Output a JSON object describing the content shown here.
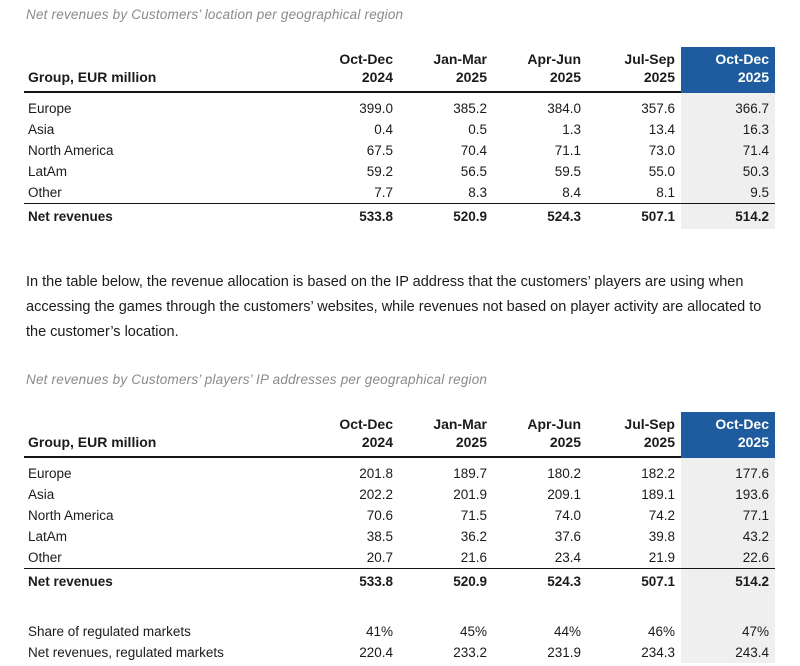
{
  "colors": {
    "accent_blue": "#1e5c9f",
    "highlight_gray": "#efefef",
    "title_gray": "#8a8a8a"
  },
  "section_location": {
    "title": "Net revenues by Customers’ location per geographical region",
    "table": {
      "corner_label": "Group, EUR million",
      "column_headers": [
        "Oct-Dec\n2024",
        "Jan-Mar\n2025",
        "Apr-Jun\n2025",
        "Jul-Sep\n2025",
        "Oct-Dec\n2025"
      ],
      "rows": [
        {
          "label": "Europe",
          "values": [
            "399.0",
            "385.2",
            "384.0",
            "357.6",
            "366.7"
          ]
        },
        {
          "label": "Asia",
          "values": [
            "0.4",
            "0.5",
            "1.3",
            "13.4",
            "16.3"
          ]
        },
        {
          "label": "North America",
          "values": [
            "67.5",
            "70.4",
            "71.1",
            "73.0",
            "71.4"
          ]
        },
        {
          "label": "LatAm",
          "values": [
            "59.2",
            "56.5",
            "59.5",
            "55.0",
            "50.3"
          ]
        },
        {
          "label": "Other",
          "values": [
            "7.7",
            "8.3",
            "8.4",
            "8.1",
            "9.5"
          ]
        }
      ],
      "total": {
        "label": "Net revenues",
        "values": [
          "533.8",
          "520.9",
          "524.3",
          "507.1",
          "514.2"
        ]
      }
    }
  },
  "body_paragraph": "In the table below, the revenue allocation is based on the IP address that the customers’ players are using when accessing the games through the customers’ websites, while revenues not based on player activity are allocated to the customer’s location.",
  "section_ip": {
    "title": "Net revenues by Customers’ players’ IP addresses per geographical region",
    "table": {
      "corner_label": "Group, EUR million",
      "column_headers": [
        "Oct-Dec\n2024",
        "Jan-Mar\n2025",
        "Apr-Jun\n2025",
        "Jul-Sep\n2025",
        "Oct-Dec\n2025"
      ],
      "rows": [
        {
          "label": "Europe",
          "values": [
            "201.8",
            "189.7",
            "180.2",
            "182.2",
            "177.6"
          ]
        },
        {
          "label": "Asia",
          "values": [
            "202.2",
            "201.9",
            "209.1",
            "189.1",
            "193.6"
          ]
        },
        {
          "label": "North America",
          "values": [
            "70.6",
            "71.5",
            "74.0",
            "74.2",
            "77.1"
          ]
        },
        {
          "label": "LatAm",
          "values": [
            "38.5",
            "36.2",
            "37.6",
            "39.8",
            "43.2"
          ]
        },
        {
          "label": "Other",
          "values": [
            "20.7",
            "21.6",
            "23.4",
            "21.9",
            "22.6"
          ]
        }
      ],
      "total": {
        "label": "Net revenues",
        "values": [
          "533.8",
          "520.9",
          "524.3",
          "507.1",
          "514.2"
        ]
      },
      "supplemental_rows": [
        {
          "label": "Share of regulated markets",
          "values": [
            "41%",
            "45%",
            "44%",
            "46%",
            "47%"
          ]
        },
        {
          "label": "Net revenues, regulated markets",
          "values": [
            "220.4",
            "233.2",
            "231.9",
            "234.3",
            "243.4"
          ]
        }
      ]
    }
  }
}
